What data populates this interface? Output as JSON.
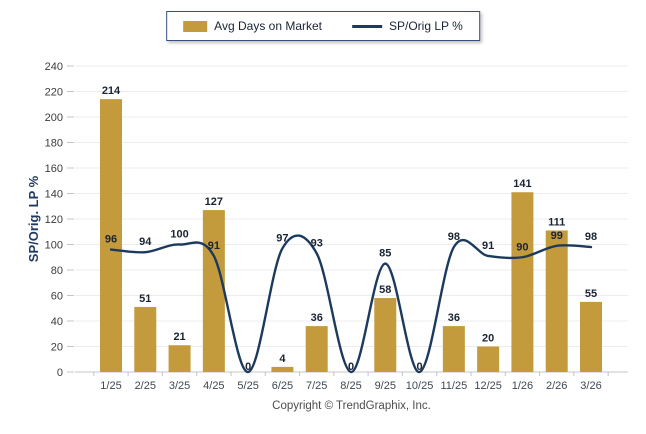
{
  "legend": {
    "items": [
      {
        "label": "Avg Days on Market",
        "type": "bar-swatch",
        "color": "#C49B3C"
      },
      {
        "label": "SP/Orig LP %",
        "type": "line-swatch",
        "color": "#1C3A5E"
      }
    ]
  },
  "chart_data": {
    "type": "combo",
    "categories": [
      "1/25",
      "2/25",
      "3/25",
      "4/25",
      "5/25",
      "6/25",
      "7/25",
      "8/25",
      "9/25",
      "10/25",
      "11/25",
      "12/25",
      "1/26",
      "2/26",
      "3/26"
    ],
    "series": [
      {
        "name": "Avg Days on Market",
        "type": "bar",
        "color": "#C49B3C",
        "values": [
          214,
          51,
          21,
          127,
          0,
          4,
          36,
          0,
          58,
          0,
          36,
          20,
          141,
          111,
          55
        ]
      },
      {
        "name": "SP/Orig LP %",
        "type": "line",
        "color": "#1C3A5E",
        "values": [
          96,
          94,
          100,
          91,
          0,
          97,
          93,
          0,
          85,
          0,
          98,
          91,
          90,
          99,
          98
        ]
      }
    ],
    "title": "",
    "xlabel": "",
    "ylabel": "SP/Orig. LP %",
    "ylim": [
      0,
      240
    ],
    "ytick_step": 20,
    "grid": "horizontal",
    "legend_position": "top-center",
    "data_labels": true
  },
  "footer": {
    "copyright": "Copyright © TrendGraphix, Inc."
  },
  "colors": {
    "bar": "#C49B3C",
    "line": "#1C3A5E",
    "label": "#1A2433",
    "legend_text": "#1A2433",
    "legend_border": "#33527C",
    "grid": "#ECECEC",
    "axis": "#C4C4C4",
    "ytick_text": "#3C3C3C",
    "xtick_text": "#3D4854",
    "ylabel_text": "#1F3A5F"
  }
}
